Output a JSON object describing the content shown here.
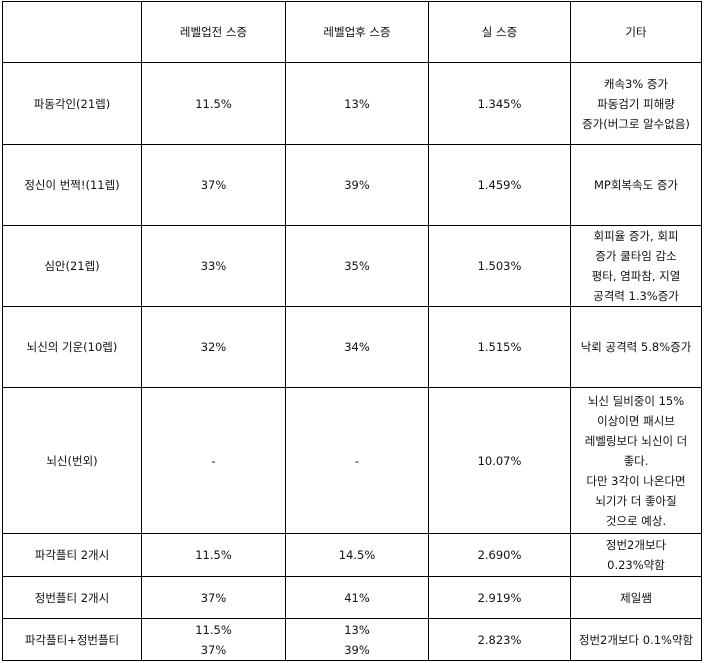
{
  "table": {
    "headers": [
      "",
      "레벨업전 스증",
      "레벨업후 스증",
      "실 스증",
      "기타"
    ],
    "rows": [
      {
        "name": "파동각인(21렙)",
        "before": "11.5%",
        "after": "13%",
        "real": "1.345%",
        "etc": "캐속3% 증가\n파동검기 피해량\n증가(버그로 알수없음)"
      },
      {
        "name": "정신이 번쩍!(11렙)",
        "before": "37%",
        "after": "39%",
        "real": "1.459%",
        "etc": "MP회복속도 증가"
      },
      {
        "name": "심안(21렙)",
        "before": "33%",
        "after": "35%",
        "real": "1.503%",
        "etc": "회피율 증가, 회피\n증가 쿨타임 감소\n평타, 염파참, 지열\n공격력 1.3%증가"
      },
      {
        "name": "뇌신의 기운(10렙)",
        "before": "32%",
        "after": "34%",
        "real": "1.515%",
        "etc": "낙뢰 공격력 5.8%증가"
      },
      {
        "name": "뇌신(번외)",
        "before": "-",
        "after": "-",
        "real": "10.07%",
        "etc": "뇌신 딜비중이 15%\n이상이면 패시브\n레벨링보다 뇌신이 더\n좋다.\n다만 3각이 나온다면\n뇌기가 더 좋아질\n것으로 예상."
      },
      {
        "name": "파각플티 2개시",
        "before": "11.5%",
        "after": "14.5%",
        "real": "2.690%",
        "etc": "정번2개보다\n0.23%약함"
      },
      {
        "name": "정번플티 2개시",
        "before": "37%",
        "after": "41%",
        "real": "2.919%",
        "etc": "제일쌤"
      },
      {
        "name": "파각플티+정번플티",
        "before": "11.5%\n37%",
        "after": "13%\n39%",
        "real": "2.823%",
        "etc": "정번2개보다 0.1%약함"
      }
    ]
  }
}
